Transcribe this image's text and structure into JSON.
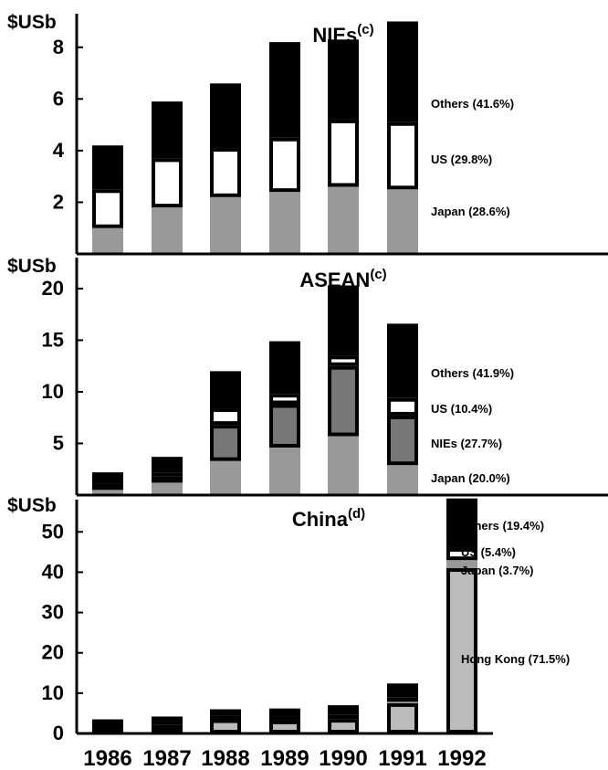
{
  "chart_data": [
    {
      "type": "bar",
      "stacked": true,
      "title": "NIEs",
      "title_superscript": "(c)",
      "ylabel": "$USb",
      "ylim": [
        0,
        9.3
      ],
      "yticks": [
        2,
        4,
        6,
        8
      ],
      "categories": [
        "1986",
        "1987",
        "1988",
        "1989",
        "1990",
        "1991"
      ],
      "series": [
        {
          "name": "Japan",
          "label": "Japan (28.6%)",
          "color": "#999999",
          "outlined": false,
          "values": [
            1.0,
            1.8,
            2.2,
            2.4,
            2.6,
            2.5
          ]
        },
        {
          "name": "US",
          "label": "US (29.8%)",
          "color": "#ffffff",
          "outlined": true,
          "values": [
            1.5,
            1.9,
            1.9,
            2.1,
            2.6,
            2.6
          ]
        },
        {
          "name": "Others",
          "label": "Others (41.6%)",
          "color": "#000000",
          "outlined": false,
          "values": [
            1.7,
            2.2,
            2.5,
            3.7,
            3.1,
            3.9
          ]
        }
      ]
    },
    {
      "type": "bar",
      "stacked": true,
      "title": "ASEAN",
      "title_superscript": "(c)",
      "ylabel": "$USb",
      "ylim": [
        0,
        23
      ],
      "yticks": [
        5,
        10,
        15,
        20
      ],
      "categories": [
        "1986",
        "1987",
        "1988",
        "1989",
        "1990",
        "1991"
      ],
      "series": [
        {
          "name": "Japan",
          "label": "Japan (20.0%)",
          "color": "#999999",
          "outlined": false,
          "values": [
            0.5,
            1.2,
            3.3,
            4.6,
            5.7,
            2.9
          ]
        },
        {
          "name": "NIEs",
          "label": "NIEs (27.7%)",
          "color": "#777777",
          "outlined": true,
          "values": [
            0.4,
            0.6,
            3.5,
            4.2,
            6.8,
            4.8
          ]
        },
        {
          "name": "US",
          "label": "US (10.4%)",
          "color": "#ffffff",
          "outlined": true,
          "values": [
            0.2,
            0.4,
            1.6,
            1.0,
            1.0,
            1.7
          ]
        },
        {
          "name": "Others",
          "label": "Others (41.9%)",
          "color": "#000000",
          "outlined": false,
          "values": [
            1.1,
            1.5,
            3.6,
            5.1,
            6.8,
            7.2
          ]
        }
      ]
    },
    {
      "type": "bar",
      "stacked": true,
      "title": "China",
      "title_superscript": "(d)",
      "ylabel": "$USb",
      "ylim": [
        0,
        58
      ],
      "yticks": [
        0,
        10,
        20,
        30,
        40,
        50
      ],
      "categories": [
        "1986",
        "1987",
        "1988",
        "1989",
        "1990",
        "1991",
        "1992"
      ],
      "series": [
        {
          "name": "Hong Kong",
          "label": "Hong Kong (71.5%)",
          "color": "#bbbbbb",
          "outlined": true,
          "values": [
            1.2,
            1.6,
            3.5,
            3.2,
            3.6,
            7.5,
            41.0
          ]
        },
        {
          "name": "Japan",
          "label": "Japan (3.7%)",
          "color": "#999999",
          "outlined": false,
          "values": [
            0.2,
            0.3,
            0.5,
            0.5,
            0.5,
            0.8,
            2.0
          ]
        },
        {
          "name": "US",
          "label": "US (5.4%)",
          "color": "#ffffff",
          "outlined": true,
          "values": [
            0.3,
            0.3,
            0.4,
            0.5,
            0.5,
            0.6,
            3.0
          ]
        },
        {
          "name": "Others",
          "label": "Others (19.4%)",
          "color": "#000000",
          "outlined": false,
          "values": [
            1.8,
            2.0,
            1.6,
            2.0,
            2.4,
            3.5,
            12.3
          ]
        }
      ]
    }
  ],
  "x_axis_labels": [
    "1986",
    "1987",
    "1988",
    "1989",
    "1990",
    "1991",
    "1992"
  ]
}
